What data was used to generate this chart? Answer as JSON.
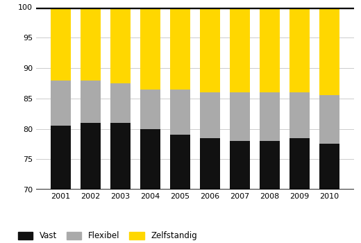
{
  "years": [
    "2001",
    "2002",
    "2003",
    "2004",
    "2005",
    "2006",
    "2007",
    "2008",
    "2009",
    "2010"
  ],
  "vast": [
    80.5,
    81.0,
    81.0,
    80.0,
    79.0,
    78.5,
    78.0,
    78.0,
    78.5,
    77.5
  ],
  "flexibel": [
    7.5,
    7.0,
    6.5,
    6.5,
    7.5,
    7.5,
    8.0,
    8.0,
    7.5,
    8.0
  ],
  "zelfstandig": [
    12.0,
    12.0,
    12.5,
    13.5,
    13.5,
    14.0,
    14.0,
    14.0,
    14.0,
    14.5
  ],
  "color_vast": "#111111",
  "color_flexibel": "#aaaaaa",
  "color_zelfstandig": "#FFD700",
  "ylim_min": 70,
  "ylim_max": 100,
  "yticks": [
    70,
    75,
    80,
    85,
    90,
    95,
    100
  ],
  "legend_labels": [
    "Vast",
    "Flexibel",
    "Zelfstandig"
  ],
  "bg_color": "#ffffff",
  "grid_color": "#cccccc"
}
